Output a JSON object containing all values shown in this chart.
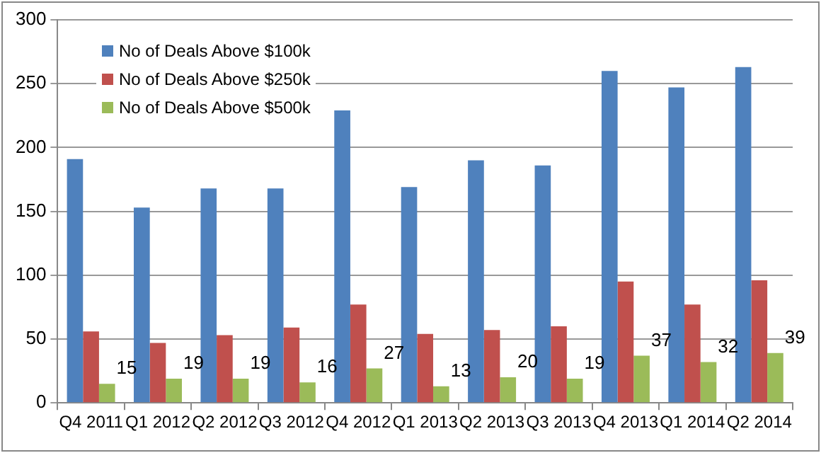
{
  "chart_data": {
    "type": "bar",
    "categories": [
      "Q4 2011",
      "Q1 2012",
      "Q2 2012",
      "Q3 2012",
      "Q4 2012",
      "Q1 2013",
      "Q2 2013",
      "Q3 2013",
      "Q4 2013",
      "Q1 2014",
      "Q2 2014"
    ],
    "series": [
      {
        "name": "No of Deals Above $100k",
        "color": "#4f81bd",
        "values": [
          191,
          153,
          168,
          168,
          229,
          169,
          190,
          186,
          260,
          247,
          263
        ]
      },
      {
        "name": "No of Deals Above $250k",
        "color": "#c0504d",
        "values": [
          56,
          47,
          53,
          59,
          77,
          54,
          57,
          60,
          95,
          77,
          96
        ]
      },
      {
        "name": "No of Deals Above $500k",
        "color": "#9bbb59",
        "values": [
          15,
          19,
          19,
          16,
          27,
          13,
          20,
          19,
          37,
          32,
          39
        ],
        "value_labels": [
          "15",
          "19",
          "19",
          "16",
          "27",
          "13",
          "20",
          "19",
          "37",
          "32",
          "39"
        ]
      }
    ],
    "ylim": [
      0,
      300
    ],
    "yticks": [
      0,
      50,
      100,
      150,
      200,
      250,
      300
    ],
    "grid": "y",
    "legend": "top left"
  }
}
